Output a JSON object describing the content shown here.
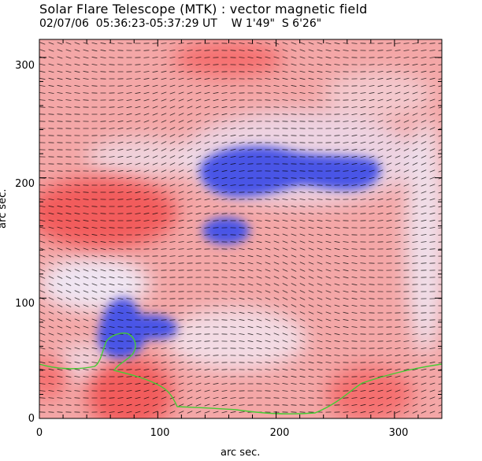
{
  "header": {
    "title": "Solar Flare Telescope (MTK) : vector magnetic field",
    "subtitle": "02/07/06  05:36:23-05:37:29 UT    W 1'49\"  S 6'26\""
  },
  "axes": {
    "xlabel": "arc sec.",
    "ylabel": "arc sec.",
    "xticks": [
      "0",
      "100",
      "200",
      "300"
    ],
    "yticks": [
      "0",
      "100",
      "200",
      "300"
    ],
    "xlim": [
      0,
      340
    ],
    "ylim": [
      0,
      315
    ]
  },
  "colors": {
    "positive": "#f26a6a",
    "negative": "#4a55e6",
    "neutral": "#eef0ff",
    "contour": "#44cc33",
    "vectors": "#000000"
  }
}
